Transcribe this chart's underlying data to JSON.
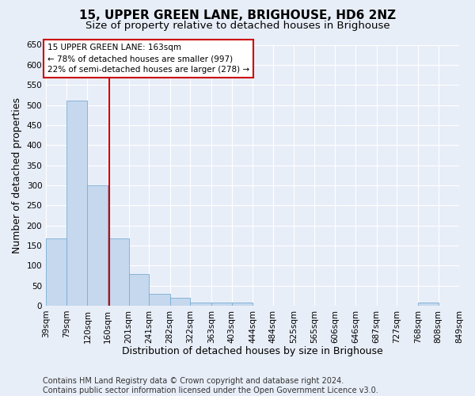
{
  "title": "15, UPPER GREEN LANE, BRIGHOUSE, HD6 2NZ",
  "subtitle": "Size of property relative to detached houses in Brighouse",
  "xlabel": "Distribution of detached houses by size in Brighouse",
  "ylabel": "Number of detached properties",
  "bar_color": "#c5d8ee",
  "bar_edge_color": "#7aadd4",
  "background_color": "#e8eef8",
  "grid_color": "#ffffff",
  "vline_color": "#cc0000",
  "vline_x": 163,
  "annotation_line1": "15 UPPER GREEN LANE: 163sqm",
  "annotation_line2": "← 78% of detached houses are smaller (997)",
  "annotation_line3": "22% of semi-detached houses are larger (278) →",
  "annotation_box_color": "#ffffff",
  "annotation_box_edge": "#cc0000",
  "bin_edges": [
    39,
    79,
    120,
    160,
    201,
    241,
    282,
    322,
    363,
    403,
    444,
    484,
    525,
    565,
    606,
    646,
    687,
    727,
    768,
    808,
    849
  ],
  "bar_heights": [
    168,
    510,
    300,
    168,
    78,
    30,
    20,
    8,
    8,
    8,
    0,
    0,
    0,
    0,
    0,
    0,
    0,
    0,
    8,
    0
  ],
  "ylim": [
    0,
    650
  ],
  "yticks": [
    0,
    50,
    100,
    150,
    200,
    250,
    300,
    350,
    400,
    450,
    500,
    550,
    600,
    650
  ],
  "footer_text": "Contains HM Land Registry data © Crown copyright and database right 2024.\nContains public sector information licensed under the Open Government Licence v3.0.",
  "footer_fontsize": 7.0,
  "title_fontsize": 11,
  "subtitle_fontsize": 9.5,
  "annotation_fontsize": 7.5,
  "tick_fontsize": 7.5,
  "ylabel_fontsize": 9,
  "xlabel_fontsize": 9
}
